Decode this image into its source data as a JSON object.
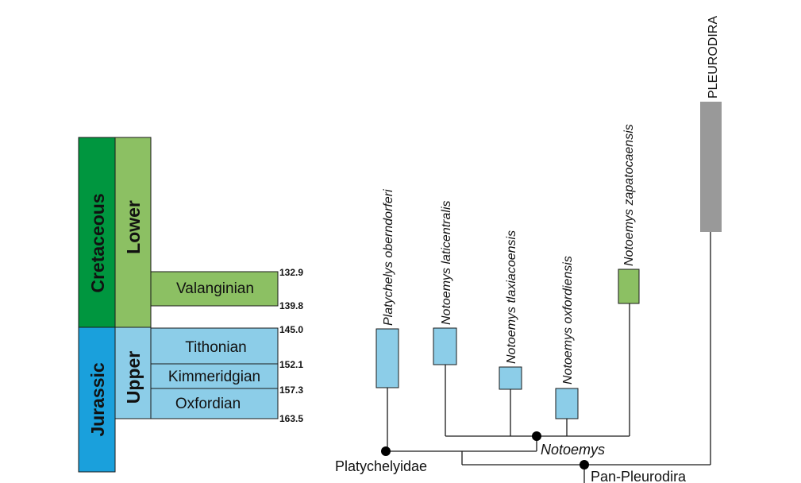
{
  "timescale": {
    "periods": [
      {
        "label": "Cretaceous",
        "color": "#00963f"
      },
      {
        "label": "Jurassic",
        "color": "#1aa0dc"
      }
    ],
    "epochs": [
      {
        "label": "Lower",
        "color": "#8cc063"
      },
      {
        "label": "Upper",
        "color": "#8ccde8"
      }
    ],
    "stages": [
      {
        "label": "Valanginian",
        "color": "#8cc063"
      },
      {
        "label": "Tithonian",
        "color": "#8ccde8"
      },
      {
        "label": "Kimmeridgian",
        "color": "#8ccde8"
      },
      {
        "label": "Oxfordian",
        "color": "#8ccde8"
      }
    ],
    "ages_ma": [
      "132.9",
      "139.8",
      "145.0",
      "152.1",
      "157.3",
      "163.5"
    ]
  },
  "taxa": [
    {
      "label": "Platychelys oberndorferi",
      "color": "#8ccde8"
    },
    {
      "label": "Notoemys laticentralis",
      "color": "#8ccde8"
    },
    {
      "label": "Notoemys tlaxiacoensis",
      "color": "#8ccde8"
    },
    {
      "label": "Notoemys oxfordiensis",
      "color": "#8ccde8"
    },
    {
      "label": "Notoemys zapatocaensis",
      "color": "#8cc063"
    },
    {
      "label": "PLEURODIRA",
      "color": "#999999"
    }
  ],
  "clades": [
    {
      "label": "Notoemys"
    },
    {
      "label": "Platychelyidae"
    },
    {
      "label": "Pan-Pleurodira"
    }
  ]
}
